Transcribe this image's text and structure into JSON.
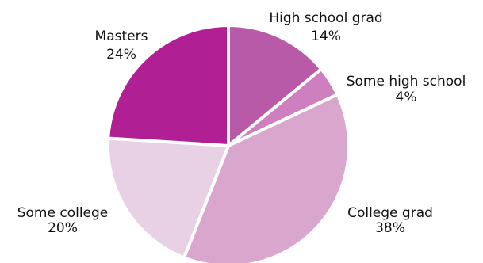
{
  "chart_data": {
    "type": "pie",
    "title": "",
    "labels": [
      "High school grad",
      "Some high school",
      "College grad",
      "Some college",
      "Masters"
    ],
    "values": [
      14,
      4,
      38,
      20,
      24
    ],
    "value_labels": [
      "14%",
      "4%",
      "38%",
      "20%",
      "24%"
    ],
    "colors": [
      "#b85aa8",
      "#cd7fc0",
      "#d9a7cd",
      "#e8d0e5",
      "#b01f93"
    ],
    "start_angle_deg": 0,
    "direction": "clockwise",
    "legend": "none"
  }
}
